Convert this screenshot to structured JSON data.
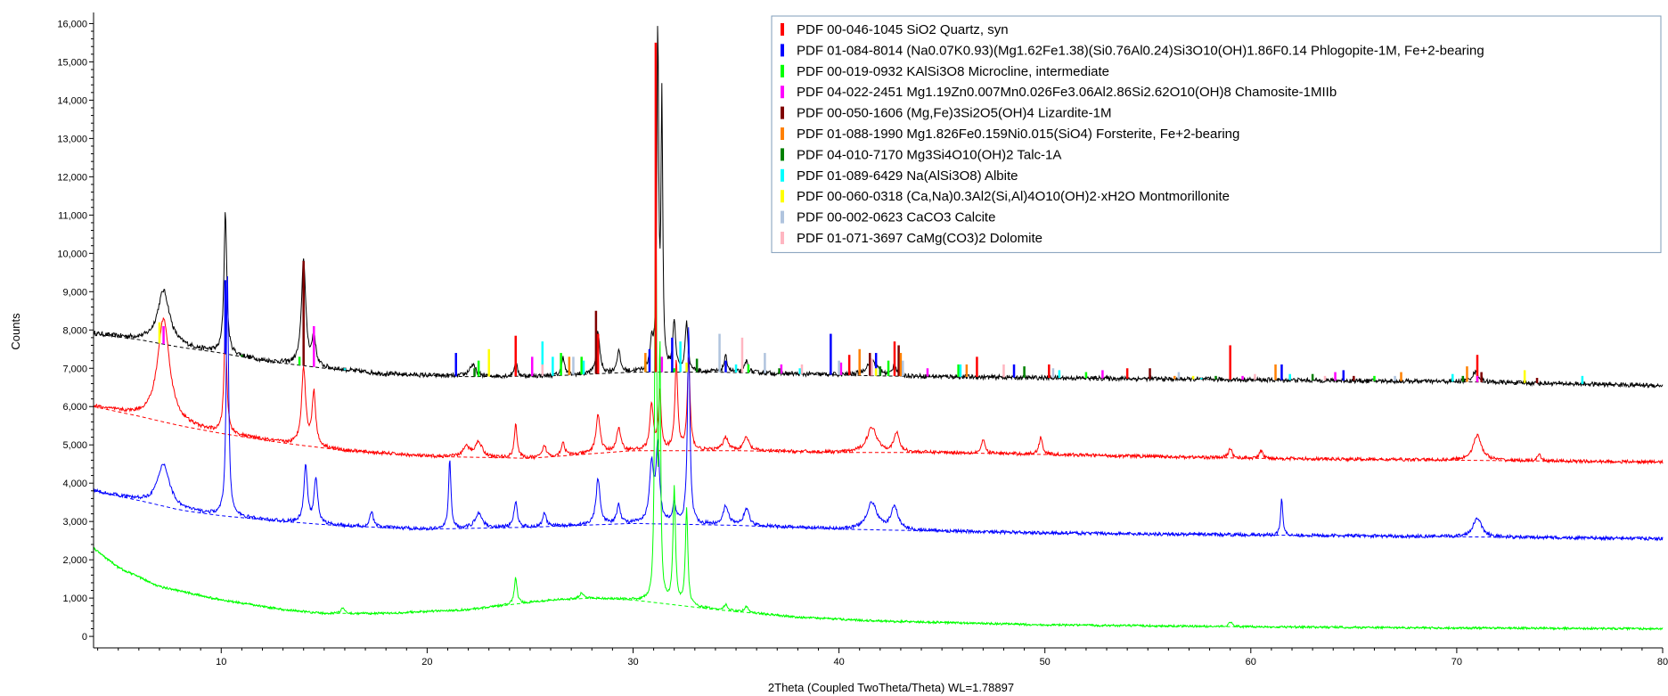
{
  "chart_data": {
    "type": "line",
    "title": "",
    "xlabel": "2Theta (Coupled TwoTheta/Theta) WL=1.78897",
    "ylabel": "Counts",
    "xlim": [
      3.8,
      80
    ],
    "ylim": [
      -300,
      16150
    ],
    "x_ticks": [
      10,
      20,
      30,
      40,
      50,
      60,
      70,
      80
    ],
    "y_ticks": [
      0,
      1000,
      2000,
      3000,
      4000,
      5000,
      6000,
      7000,
      8000,
      9000,
      10000,
      11000,
      12000,
      13000,
      14000,
      15000,
      16000
    ],
    "x_tick_labels": [
      "10",
      "20",
      "30",
      "40",
      "50",
      "60",
      "70",
      "80"
    ],
    "y_tick_labels": [
      "0",
      "1,000",
      "2,000",
      "3,000",
      "4,000",
      "5,000",
      "6,000",
      "7,000",
      "8,000",
      "9,000",
      "10,000",
      "11,000",
      "12,000",
      "13,000",
      "14,000",
      "15,000",
      "16,000"
    ],
    "grid": false,
    "legend_position": "top-right",
    "series": [
      {
        "color": "#000000",
        "background": [
          [
            3.8,
            7900
          ],
          [
            6,
            7750
          ],
          [
            8,
            7550
          ],
          [
            10,
            7400
          ],
          [
            12,
            7200
          ],
          [
            15,
            7000
          ],
          [
            18,
            6850
          ],
          [
            22,
            6780
          ],
          [
            26,
            6800
          ],
          [
            30,
            6900
          ],
          [
            34,
            6900
          ],
          [
            38,
            6850
          ],
          [
            42,
            6800
          ],
          [
            50,
            6750
          ],
          [
            60,
            6700
          ],
          [
            70,
            6650
          ],
          [
            80,
            6550
          ]
        ],
        "peaks": [
          [
            7.2,
            1400,
            0.35
          ],
          [
            10.2,
            3700,
            0.08
          ],
          [
            14.0,
            2800,
            0.12
          ],
          [
            14.5,
            800,
            0.1
          ],
          [
            22.2,
            300,
            0.2
          ],
          [
            24.3,
            400,
            0.08
          ],
          [
            26.6,
            500,
            0.08
          ],
          [
            28.3,
            1100,
            0.1
          ],
          [
            29.3,
            550,
            0.1
          ],
          [
            30.9,
            700,
            0.1
          ],
          [
            31.2,
            8900,
            0.05
          ],
          [
            31.4,
            7000,
            0.05
          ],
          [
            32.0,
            1300,
            0.08
          ],
          [
            32.6,
            1300,
            0.08
          ],
          [
            34.5,
            400,
            0.1
          ],
          [
            35.5,
            300,
            0.1
          ],
          [
            41.6,
            400,
            0.3
          ],
          [
            42.7,
            300,
            0.1
          ],
          [
            70.9,
            250,
            0.2
          ]
        ],
        "noise": 120
      },
      {
        "color": "#ff0000",
        "background": [
          [
            3.8,
            6000
          ],
          [
            6,
            5750
          ],
          [
            8,
            5500
          ],
          [
            10,
            5300
          ],
          [
            13,
            5050
          ],
          [
            16,
            4850
          ],
          [
            20,
            4700
          ],
          [
            25,
            4650
          ],
          [
            30,
            4850
          ],
          [
            35,
            4850
          ],
          [
            40,
            4800
          ],
          [
            45,
            4800
          ],
          [
            50,
            4750
          ],
          [
            55,
            4700
          ],
          [
            60,
            4650
          ],
          [
            70,
            4600
          ],
          [
            80,
            4550
          ]
        ],
        "peaks": [
          [
            7.2,
            2700,
            0.35
          ],
          [
            10.2,
            2800,
            0.08
          ],
          [
            14.0,
            2000,
            0.12
          ],
          [
            14.5,
            1400,
            0.1
          ],
          [
            21.9,
            250,
            0.2
          ],
          [
            22.5,
            400,
            0.2
          ],
          [
            24.3,
            900,
            0.08
          ],
          [
            25.7,
            300,
            0.1
          ],
          [
            26.6,
            350,
            0.1
          ],
          [
            28.3,
            1000,
            0.12
          ],
          [
            29.3,
            600,
            0.12
          ],
          [
            30.9,
            1200,
            0.1
          ],
          [
            31.3,
            1500,
            0.08
          ],
          [
            32.1,
            2300,
            0.08
          ],
          [
            32.7,
            2400,
            0.08
          ],
          [
            34.5,
            350,
            0.15
          ],
          [
            35.5,
            350,
            0.15
          ],
          [
            41.6,
            650,
            0.3
          ],
          [
            42.8,
            500,
            0.15
          ],
          [
            47.0,
            350,
            0.1
          ],
          [
            49.8,
            450,
            0.1
          ],
          [
            59.0,
            250,
            0.1
          ],
          [
            60.5,
            200,
            0.1
          ],
          [
            71.0,
            650,
            0.25
          ],
          [
            74.0,
            150,
            0.1
          ]
        ],
        "noise": 90
      },
      {
        "color": "#0000ff",
        "background": [
          [
            3.8,
            3800
          ],
          [
            6,
            3550
          ],
          [
            8,
            3300
          ],
          [
            10,
            3150
          ],
          [
            13,
            3000
          ],
          [
            16,
            2880
          ],
          [
            20,
            2800
          ],
          [
            25,
            2850
          ],
          [
            30,
            2950
          ],
          [
            35,
            2900
          ],
          [
            40,
            2800
          ],
          [
            45,
            2750
          ],
          [
            50,
            2700
          ],
          [
            60,
            2650
          ],
          [
            70,
            2600
          ],
          [
            80,
            2550
          ]
        ],
        "peaks": [
          [
            7.2,
            1100,
            0.35
          ],
          [
            10.3,
            6400,
            0.07
          ],
          [
            14.1,
            1500,
            0.1
          ],
          [
            14.6,
            1200,
            0.1
          ],
          [
            17.3,
            400,
            0.1
          ],
          [
            21.1,
            1800,
            0.07
          ],
          [
            22.5,
            400,
            0.2
          ],
          [
            24.3,
            650,
            0.1
          ],
          [
            25.7,
            350,
            0.1
          ],
          [
            28.3,
            1200,
            0.12
          ],
          [
            29.3,
            500,
            0.1
          ],
          [
            30.9,
            1500,
            0.12
          ],
          [
            31.2,
            2000,
            0.1
          ],
          [
            32.0,
            500,
            0.1
          ],
          [
            32.7,
            5200,
            0.07
          ],
          [
            34.5,
            500,
            0.15
          ],
          [
            35.5,
            450,
            0.15
          ],
          [
            41.6,
            700,
            0.3
          ],
          [
            42.7,
            600,
            0.2
          ],
          [
            61.5,
            1000,
            0.06
          ],
          [
            71.0,
            500,
            0.25
          ]
        ],
        "noise": 90
      },
      {
        "color": "#00ff00",
        "background": [
          [
            3.8,
            2300
          ],
          [
            5,
            1800
          ],
          [
            7,
            1300
          ],
          [
            10,
            950
          ],
          [
            13,
            700
          ],
          [
            15,
            600
          ],
          [
            18,
            600
          ],
          [
            22,
            700
          ],
          [
            26,
            950
          ],
          [
            28,
            1000
          ],
          [
            30,
            950
          ],
          [
            34,
            700
          ],
          [
            38,
            500
          ],
          [
            42,
            400
          ],
          [
            50,
            300
          ],
          [
            60,
            250
          ],
          [
            70,
            220
          ],
          [
            80,
            200
          ]
        ],
        "peaks": [
          [
            15.9,
            150,
            0.1
          ],
          [
            24.3,
            700,
            0.08
          ],
          [
            27.5,
            150,
            0.1
          ],
          [
            31.1,
            11600,
            0.05
          ],
          [
            31.3,
            6400,
            0.05
          ],
          [
            32.0,
            3000,
            0.07
          ],
          [
            32.6,
            2500,
            0.07
          ],
          [
            34.5,
            150,
            0.1
          ],
          [
            35.5,
            150,
            0.1
          ],
          [
            59.0,
            130,
            0.1
          ]
        ],
        "noise": 60
      }
    ],
    "reference_sticks": [
      {
        "color": "#ff0000",
        "sticks": [
          [
            24.3,
            7850
          ],
          [
            28.3,
            7900
          ],
          [
            31.1,
            15500
          ],
          [
            40.5,
            7350
          ],
          [
            42.7,
            7700
          ],
          [
            46.7,
            7300
          ],
          [
            50.2,
            7100
          ],
          [
            54.0,
            7000
          ],
          [
            59.0,
            7600
          ],
          [
            71.0,
            7350
          ]
        ]
      },
      {
        "color": "#0000ff",
        "sticks": [
          [
            10.2,
            9300
          ],
          [
            14.0,
            7600
          ],
          [
            21.4,
            7400
          ],
          [
            30.8,
            7500
          ],
          [
            31.9,
            7800
          ],
          [
            34.5,
            7200
          ],
          [
            39.6,
            7900
          ],
          [
            41.8,
            7400
          ],
          [
            48.5,
            7100
          ],
          [
            61.5,
            7100
          ],
          [
            64.5,
            6950
          ]
        ]
      },
      {
        "color": "#00ff00",
        "sticks": [
          [
            13.8,
            7300
          ],
          [
            22.5,
            7200
          ],
          [
            26.5,
            7400
          ],
          [
            27.5,
            7300
          ],
          [
            30.6,
            7200
          ],
          [
            32.0,
            7000
          ],
          [
            35.6,
            7100
          ],
          [
            42.4,
            7200
          ],
          [
            45.8,
            7100
          ],
          [
            52.0,
            6900
          ],
          [
            66.0,
            6800
          ]
        ]
      },
      {
        "color": "#ff00ff",
        "sticks": [
          [
            7.2,
            8100
          ],
          [
            14.5,
            8100
          ],
          [
            25.1,
            7300
          ],
          [
            31.4,
            7300
          ],
          [
            37.2,
            7100
          ],
          [
            40.1,
            7150
          ],
          [
            44.3,
            7000
          ],
          [
            52.8,
            6950
          ],
          [
            59.6,
            6800
          ],
          [
            64.1,
            6900
          ],
          [
            71.0,
            6800
          ]
        ]
      },
      {
        "color": "#800000",
        "sticks": [
          [
            14.0,
            9800
          ],
          [
            28.2,
            8500
          ],
          [
            41.5,
            7400
          ],
          [
            42.9,
            7600
          ],
          [
            55.1,
            7000
          ],
          [
            65.0,
            6800
          ],
          [
            71.2,
            6900
          ],
          [
            73.9,
            6750
          ]
        ]
      },
      {
        "color": "#ff8000",
        "sticks": [
          [
            26.9,
            7300
          ],
          [
            30.6,
            7400
          ],
          [
            41.0,
            7500
          ],
          [
            43.0,
            7400
          ],
          [
            46.2,
            7100
          ],
          [
            56.3,
            6800
          ],
          [
            61.2,
            7100
          ],
          [
            67.3,
            6900
          ],
          [
            70.5,
            7050
          ]
        ]
      },
      {
        "color": "#008000",
        "sticks": [
          [
            11.0,
            7350
          ],
          [
            22.3,
            7000
          ],
          [
            33.1,
            7250
          ],
          [
            37.1,
            7000
          ],
          [
            42.0,
            7050
          ],
          [
            49.0,
            7050
          ],
          [
            58.3,
            6800
          ],
          [
            63.0,
            6850
          ],
          [
            70.3,
            6800
          ]
        ]
      },
      {
        "color": "#00ffff",
        "sticks": [
          [
            16.0,
            7000
          ],
          [
            25.6,
            7700
          ],
          [
            26.1,
            7300
          ],
          [
            27.6,
            7200
          ],
          [
            32.3,
            7700
          ],
          [
            35.0,
            7100
          ],
          [
            38.1,
            7000
          ],
          [
            45.9,
            7100
          ],
          [
            50.7,
            6950
          ],
          [
            57.6,
            6750
          ],
          [
            61.9,
            6850
          ],
          [
            69.8,
            6850
          ],
          [
            76.1,
            6800
          ]
        ]
      },
      {
        "color": "#ffff00",
        "sticks": [
          [
            7.0,
            8200
          ],
          [
            23.0,
            7500
          ],
          [
            32.6,
            7150
          ],
          [
            41.8,
            7000
          ],
          [
            57.2,
            6800
          ],
          [
            73.3,
            6950
          ]
        ]
      },
      {
        "color": "#b0c4de",
        "sticks": [
          [
            27.1,
            7300
          ],
          [
            34.2,
            7900
          ],
          [
            36.4,
            7400
          ],
          [
            40.0,
            7200
          ],
          [
            43.1,
            7200
          ],
          [
            50.4,
            7000
          ],
          [
            56.5,
            6900
          ],
          [
            67.0,
            6800
          ]
        ]
      },
      {
        "color": "#ffb6c1",
        "sticks": [
          [
            25.6,
            7100
          ],
          [
            35.3,
            7800
          ],
          [
            38.2,
            7100
          ],
          [
            41.6,
            7250
          ],
          [
            48.0,
            7100
          ],
          [
            60.2,
            6850
          ],
          [
            63.6,
            6800
          ]
        ]
      }
    ],
    "legend": [
      {
        "label": "PDF 00-046-1045 SiO2 Quartz, syn",
        "color": "#ff0000"
      },
      {
        "label": "PDF  01-084-8014  (Na0.07K0.93)(Mg1.62Fe1.38)(Si0.76Al0.24)Si3O10(OH)1.86F0.14  Phlogopite-1M,  Fe+2-bearing",
        "color": "#0000ff"
      },
      {
        "label": "PDF 00-019-0932 KAlSi3O8 Microcline, intermediate",
        "color": "#00ff00"
      },
      {
        "label": "PDF  04-022-2451  Mg1.19Zn0.007Mn0.026Fe3.06Al2.86Si2.62O10(OH)8  Chamosite-1MIIb",
        "color": "#ff00ff"
      },
      {
        "label": "PDF 00-050-1606 (Mg,Fe)3Si2O5(OH)4 Lizardite-1M",
        "color": "#800000"
      },
      {
        "label": "PDF 01-088-1990 Mg1.826Fe0.159Ni0.015(SiO4) Forsterite, Fe+2-bearing",
        "color": "#ff8000"
      },
      {
        "label": "PDF 04-010-7170 Mg3Si4O10(OH)2 Talc-1A",
        "color": "#008000"
      },
      {
        "label": "PDF 01-089-6429 Na(AlSi3O8) Albite",
        "color": "#00ffff"
      },
      {
        "label": "PDF 00-060-0318 (Ca,Na)0.3Al2(Si,Al)4O10(OH)2·xH2O Montmorillonite",
        "color": "#ffff00"
      },
      {
        "label": "PDF 00-002-0623 CaCO3 Calcite",
        "color": "#b0c4de"
      },
      {
        "label": "PDF 01-071-3697 CaMg(CO3)2 Dolomite",
        "color": "#ffb6c1"
      }
    ]
  }
}
